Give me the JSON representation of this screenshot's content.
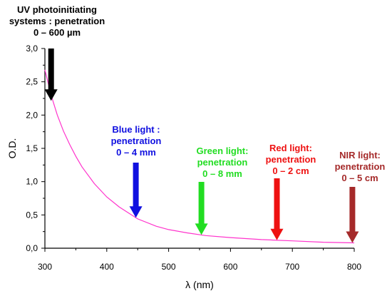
{
  "chart_data": {
    "type": "line",
    "xlabel": "λ (nm)",
    "ylabel": "O.D.",
    "xlim": [
      300,
      800
    ],
    "ylim": [
      0,
      3.0
    ],
    "x_ticks": [
      "300",
      "400",
      "500",
      "600",
      "700",
      "800"
    ],
    "y_ticks": [
      "0,0",
      "0,5",
      "1,0",
      "1,5",
      "2,0",
      "2,5",
      "3,0"
    ],
    "grid": false,
    "series": [
      {
        "color": "#ff33cc",
        "x": [
          300,
          310,
          320,
          330,
          340,
          350,
          360,
          380,
          400,
          420,
          450,
          480,
          500,
          530,
          560,
          600,
          650,
          700,
          750,
          800
        ],
        "y": [
          2.68,
          2.3,
          2.0,
          1.76,
          1.56,
          1.38,
          1.22,
          0.97,
          0.77,
          0.62,
          0.44,
          0.33,
          0.28,
          0.23,
          0.19,
          0.16,
          0.13,
          0.11,
          0.09,
          0.08
        ]
      }
    ],
    "annotations": [
      {
        "lines": [
          "UV photoinitiating",
          "systems : penetration",
          "0 – 600 µm"
        ],
        "color": "#000000",
        "arrow_x": 310
      },
      {
        "lines": [
          "Blue light :",
          "penetration",
          "0 – 4 mm"
        ],
        "color": "#1010e0",
        "arrow_x": 447
      },
      {
        "lines": [
          "Green light:",
          "penetration",
          "0 – 8 mm"
        ],
        "color": "#22dd22",
        "arrow_x": 553
      },
      {
        "lines": [
          "Red light:",
          "penetration",
          "0 – 2 cm"
        ],
        "color": "#ee1111",
        "arrow_x": 675
      },
      {
        "lines": [
          "NIR light:",
          "penetration",
          "0 – 5 cm"
        ],
        "color": "#a52a2a",
        "arrow_x": 797
      }
    ]
  }
}
